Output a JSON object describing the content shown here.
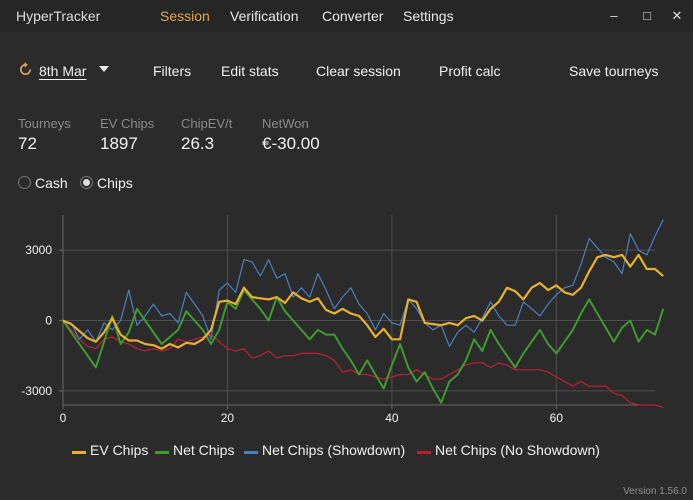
{
  "app": {
    "title": "HyperTracker",
    "version": "Version 1.56.0"
  },
  "nav": [
    {
      "label": "Session",
      "active": true
    },
    {
      "label": "Verification",
      "active": false
    },
    {
      "label": "Converter",
      "active": false
    },
    {
      "label": "Settings",
      "active": false
    }
  ],
  "window_controls": {
    "minimize": "–",
    "maximize": "□",
    "close": "✕"
  },
  "toolbar": {
    "date": "8th Mar",
    "filters": "Filters",
    "edit_stats": "Edit stats",
    "clear_session": "Clear session",
    "profit_calc": "Profit calc",
    "save_tourneys": "Save tourneys"
  },
  "stats": [
    {
      "label": "Tourneys",
      "value": "72"
    },
    {
      "label": "EV Chips",
      "value": "1897"
    },
    {
      "label": "ChipEV/t",
      "value": "26.3"
    },
    {
      "label": "NetWon",
      "value": "€-30.00"
    }
  ],
  "mode": {
    "options": [
      "Cash",
      "Chips"
    ],
    "selected": "Chips"
  },
  "colors": {
    "accent": "#e0a64f",
    "ev": "#e8b030",
    "net": "#3f9a2f",
    "showdown": "#4a7fc0",
    "noshowdown": "#c01e38"
  },
  "chart_data": {
    "type": "line",
    "xlim": [
      0,
      72
    ],
    "ylim": [
      -3600,
      4500
    ],
    "x_ticks": [
      0,
      20,
      40,
      60
    ],
    "y_ticks": [
      3000,
      0,
      -3000
    ],
    "x_tick_labels": [
      "0",
      "20",
      "40",
      "60"
    ],
    "y_tick_labels": [
      "3000",
      "0",
      "-3000"
    ],
    "grid": true,
    "legend_position": "bottom",
    "series": [
      {
        "name": "EV Chips",
        "color": "#e8b030",
        "values": [
          0,
          -150,
          -450,
          -750,
          -900,
          -500,
          100,
          -600,
          -850,
          -850,
          -1000,
          -1050,
          -1200,
          -1000,
          -1150,
          -950,
          -1000,
          -800,
          -400,
          800,
          850,
          700,
          1400,
          1000,
          950,
          900,
          1000,
          750,
          1200,
          950,
          800,
          950,
          450,
          300,
          500,
          300,
          200,
          -200,
          -700,
          -350,
          -800,
          -800,
          900,
          800,
          -100,
          -150,
          -200,
          -100,
          -200,
          100,
          200,
          0,
          500,
          800,
          1400,
          1250,
          900,
          1400,
          1600,
          1300,
          1500,
          1200,
          1100,
          1400,
          2100,
          2700,
          2800,
          2700,
          2800,
          2300,
          2800,
          2200,
          2200,
          1897
        ]
      },
      {
        "name": "Net Chips",
        "color": "#3f9a2f",
        "values": [
          0,
          -500,
          -1000,
          -1500,
          -2000,
          -900,
          200,
          -1000,
          -500,
          500,
          0,
          -500,
          -1000,
          -700,
          -400,
          400,
          0,
          -400,
          -1000,
          -400,
          800,
          500,
          1300,
          900,
          500,
          0,
          1000,
          400,
          0,
          -400,
          -800,
          -400,
          -600,
          -600,
          -1200,
          -1700,
          -2300,
          -1700,
          -2300,
          -2900,
          -1900,
          -1000,
          -2000,
          -2600,
          -2200,
          -2900,
          -3500,
          -2600,
          -2300,
          -1700,
          -800,
          -1300,
          -400,
          -1000,
          -1500,
          -2000,
          -1400,
          -900,
          -400,
          -1000,
          -1400,
          -900,
          -400,
          300,
          900,
          300,
          -300,
          -900,
          -300,
          0,
          -900,
          -400,
          -600,
          500
        ]
      },
      {
        "name": "Net Chips (Showdown)",
        "color": "#4a7fc0",
        "values": [
          0,
          -100,
          -800,
          -400,
          -900,
          -100,
          -400,
          0,
          1300,
          -200,
          200,
          700,
          200,
          300,
          -100,
          1200,
          700,
          200,
          -800,
          1300,
          1600,
          1200,
          2600,
          2500,
          1900,
          2600,
          1800,
          2000,
          1000,
          1400,
          1000,
          2000,
          1300,
          500,
          1000,
          1400,
          700,
          300,
          -400,
          300,
          -100,
          -200,
          900,
          500,
          -100,
          -400,
          -200,
          -1100,
          -500,
          -200,
          -500,
          100,
          800,
          200,
          -200,
          -200,
          800,
          500,
          200,
          700,
          1100,
          1400,
          1500,
          2400,
          3500,
          3100,
          2700,
          2500,
          2000,
          3700,
          3000,
          2800,
          3600,
          4300
        ]
      },
      {
        "name": "Net Chips (No Showdown)",
        "color": "#c01e38",
        "values": [
          0,
          -400,
          -800,
          -1100,
          -1200,
          -800,
          -700,
          -900,
          -1000,
          -1200,
          -1300,
          -1200,
          -1300,
          -1200,
          -800,
          -900,
          -800,
          -700,
          -600,
          -900,
          -1200,
          -1300,
          -1200,
          -1600,
          -1500,
          -1300,
          -1600,
          -1500,
          -1500,
          -1400,
          -1400,
          -1400,
          -1500,
          -1700,
          -2200,
          -2100,
          -2300,
          -2300,
          -2400,
          -2500,
          -2400,
          -2300,
          -2300,
          -2100,
          -2300,
          -2500,
          -2500,
          -2300,
          -2100,
          -1900,
          -1800,
          -1800,
          -2000,
          -1800,
          -1900,
          -2100,
          -2100,
          -2100,
          -2100,
          -2200,
          -2400,
          -2600,
          -2800,
          -2600,
          -2800,
          -2800,
          -2800,
          -3100,
          -3200,
          -3500,
          -3600,
          -3600,
          -3600,
          -3700
        ]
      }
    ]
  }
}
